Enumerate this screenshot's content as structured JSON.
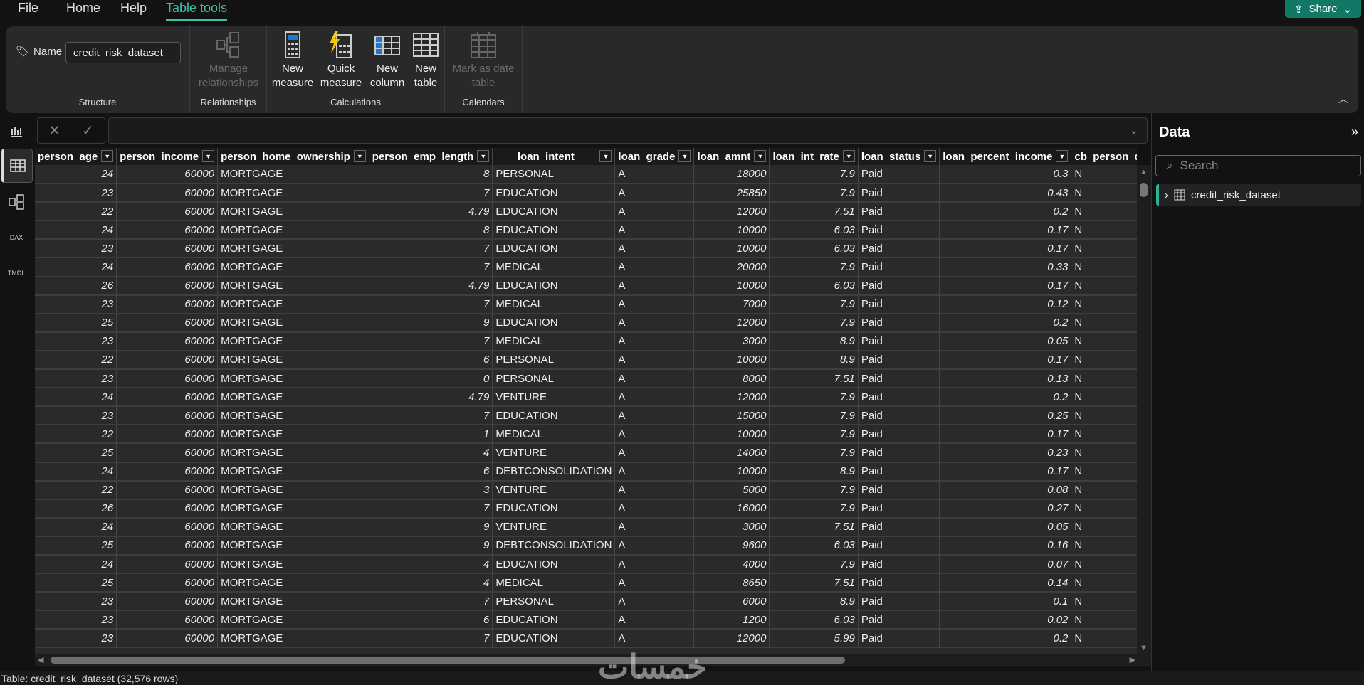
{
  "menu": {
    "items": [
      "File",
      "Home",
      "Help",
      "Table tools"
    ],
    "share": "Share"
  },
  "ribbon": {
    "name_label": "Name",
    "name_value": "credit_risk_dataset",
    "groups": {
      "structure": "Structure",
      "relationships": "Relationships",
      "calculations": "Calculations",
      "calendars": "Calendars"
    },
    "buttons": {
      "manage_relationships": [
        "Manage",
        "relationships"
      ],
      "new_measure": [
        "New",
        "measure"
      ],
      "quick_measure": [
        "Quick",
        "measure"
      ],
      "new_column": [
        "New",
        "column"
      ],
      "new_table": [
        "New",
        "table"
      ],
      "mark_date_table": [
        "Mark as date",
        "table"
      ]
    }
  },
  "grid": {
    "columns": [
      "person_age",
      "person_income",
      "person_home_ownership",
      "person_emp_length",
      "loan_intent",
      "loan_grade",
      "loan_amnt",
      "loan_int_rate",
      "loan_status",
      "loan_percent_income",
      "cb_person_de"
    ],
    "numeric": [
      true,
      true,
      false,
      true,
      false,
      false,
      true,
      true,
      false,
      true,
      false
    ],
    "rows": [
      [
        24,
        60000,
        "MORTGAGE",
        8,
        "PERSONAL",
        "A",
        18000,
        7.9,
        "Paid",
        0.3,
        "N"
      ],
      [
        23,
        60000,
        "MORTGAGE",
        7,
        "EDUCATION",
        "A",
        25850,
        7.9,
        "Paid",
        0.43,
        "N"
      ],
      [
        22,
        60000,
        "MORTGAGE",
        4.79,
        "EDUCATION",
        "A",
        12000,
        7.51,
        "Paid",
        0.2,
        "N"
      ],
      [
        24,
        60000,
        "MORTGAGE",
        8,
        "EDUCATION",
        "A",
        10000,
        6.03,
        "Paid",
        0.17,
        "N"
      ],
      [
        23,
        60000,
        "MORTGAGE",
        7,
        "EDUCATION",
        "A",
        10000,
        6.03,
        "Paid",
        0.17,
        "N"
      ],
      [
        24,
        60000,
        "MORTGAGE",
        7,
        "MEDICAL",
        "A",
        20000,
        7.9,
        "Paid",
        0.33,
        "N"
      ],
      [
        26,
        60000,
        "MORTGAGE",
        4.79,
        "EDUCATION",
        "A",
        10000,
        6.03,
        "Paid",
        0.17,
        "N"
      ],
      [
        23,
        60000,
        "MORTGAGE",
        7,
        "MEDICAL",
        "A",
        7000,
        7.9,
        "Paid",
        0.12,
        "N"
      ],
      [
        25,
        60000,
        "MORTGAGE",
        9,
        "EDUCATION",
        "A",
        12000,
        7.9,
        "Paid",
        0.2,
        "N"
      ],
      [
        23,
        60000,
        "MORTGAGE",
        7,
        "MEDICAL",
        "A",
        3000,
        8.9,
        "Paid",
        0.05,
        "N"
      ],
      [
        22,
        60000,
        "MORTGAGE",
        6,
        "PERSONAL",
        "A",
        10000,
        8.9,
        "Paid",
        0.17,
        "N"
      ],
      [
        23,
        60000,
        "MORTGAGE",
        0,
        "PERSONAL",
        "A",
        8000,
        7.51,
        "Paid",
        0.13,
        "N"
      ],
      [
        24,
        60000,
        "MORTGAGE",
        4.79,
        "VENTURE",
        "A",
        12000,
        7.9,
        "Paid",
        0.2,
        "N"
      ],
      [
        23,
        60000,
        "MORTGAGE",
        7,
        "EDUCATION",
        "A",
        15000,
        7.9,
        "Paid",
        0.25,
        "N"
      ],
      [
        22,
        60000,
        "MORTGAGE",
        1,
        "MEDICAL",
        "A",
        10000,
        7.9,
        "Paid",
        0.17,
        "N"
      ],
      [
        25,
        60000,
        "MORTGAGE",
        4,
        "VENTURE",
        "A",
        14000,
        7.9,
        "Paid",
        0.23,
        "N"
      ],
      [
        24,
        60000,
        "MORTGAGE",
        6,
        "DEBTCONSOLIDATION",
        "A",
        10000,
        8.9,
        "Paid",
        0.17,
        "N"
      ],
      [
        22,
        60000,
        "MORTGAGE",
        3,
        "VENTURE",
        "A",
        5000,
        7.9,
        "Paid",
        0.08,
        "N"
      ],
      [
        26,
        60000,
        "MORTGAGE",
        7,
        "EDUCATION",
        "A",
        16000,
        7.9,
        "Paid",
        0.27,
        "N"
      ],
      [
        24,
        60000,
        "MORTGAGE",
        9,
        "VENTURE",
        "A",
        3000,
        7.51,
        "Paid",
        0.05,
        "N"
      ],
      [
        25,
        60000,
        "MORTGAGE",
        9,
        "DEBTCONSOLIDATION",
        "A",
        9600,
        6.03,
        "Paid",
        0.16,
        "N"
      ],
      [
        24,
        60000,
        "MORTGAGE",
        4,
        "EDUCATION",
        "A",
        4000,
        7.9,
        "Paid",
        0.07,
        "N"
      ],
      [
        25,
        60000,
        "MORTGAGE",
        4,
        "MEDICAL",
        "A",
        8650,
        7.51,
        "Paid",
        0.14,
        "N"
      ],
      [
        23,
        60000,
        "MORTGAGE",
        7,
        "PERSONAL",
        "A",
        6000,
        8.9,
        "Paid",
        0.1,
        "N"
      ],
      [
        23,
        60000,
        "MORTGAGE",
        6,
        "EDUCATION",
        "A",
        1200,
        6.03,
        "Paid",
        0.02,
        "N"
      ],
      [
        23,
        60000,
        "MORTGAGE",
        7,
        "EDUCATION",
        "A",
        12000,
        5.99,
        "Paid",
        0.2,
        "N"
      ]
    ]
  },
  "data_panel": {
    "title": "Data",
    "search_placeholder": "Search",
    "tables": [
      "credit_risk_dataset"
    ]
  },
  "status": "Table: credit_risk_dataset (32,576 rows)",
  "watermark": "خمسات",
  "colors": {
    "accent": "#3bc1a8",
    "share": "#117865"
  }
}
